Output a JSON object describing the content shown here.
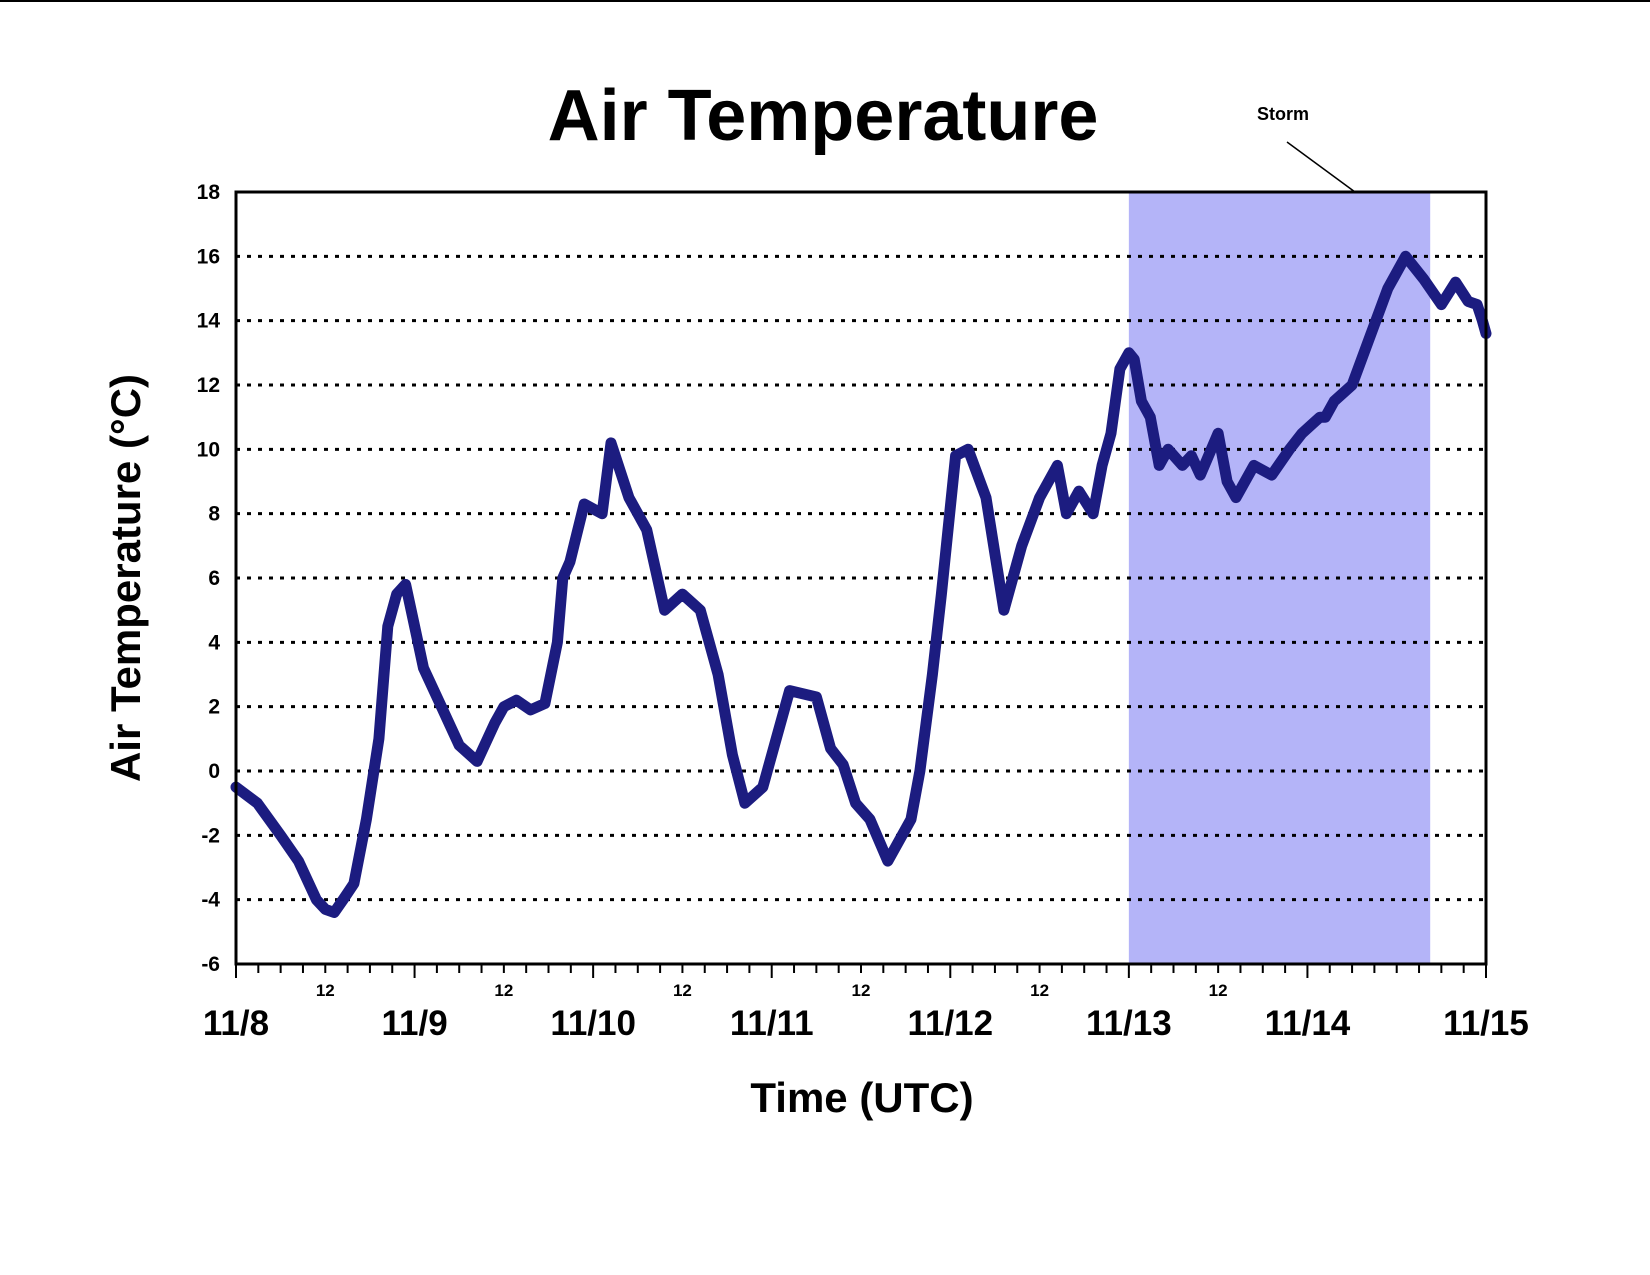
{
  "chart_data": {
    "type": "line",
    "title": "Air Temperature",
    "xlabel": "Time (UTC)",
    "ylabel": "Air Temperature (°C)",
    "ylim": [
      -6,
      18
    ],
    "yticks": [
      "18",
      "16",
      "14",
      "12",
      "10",
      "8",
      "6",
      "4",
      "2",
      "0",
      "-2",
      "-4",
      "-6"
    ],
    "xlim": [
      "11/8 00:00",
      "11/15 00:00"
    ],
    "x_major_labels": [
      "11/8",
      "11/9",
      "11/10",
      "11/11",
      "11/12",
      "11/13",
      "11/14",
      "11/15"
    ],
    "x_minor_label": "12",
    "grid": "horizontal dotted",
    "line_color": "#1c1c80",
    "shade_color": "#b4b4f8",
    "annotation": {
      "text": "Storm",
      "start": "11/13 00:00",
      "end": "11/14 16:30"
    },
    "series": [
      {
        "x_days": [
          0,
          0.12,
          0.25,
          0.35,
          0.45,
          0.5,
          0.55,
          0.6,
          0.66,
          0.73,
          0.8,
          0.85,
          0.9,
          0.95,
          1.0,
          1.05,
          1.15,
          1.25,
          1.35,
          1.45,
          1.5,
          1.57,
          1.65,
          1.73,
          1.8,
          1.83,
          1.87,
          1.95,
          2.05,
          2.1,
          2.2,
          2.3,
          2.4,
          2.5,
          2.6,
          2.7,
          2.78,
          2.85,
          2.95,
          3.1,
          3.25,
          3.33,
          3.4,
          3.47,
          3.55,
          3.65,
          3.73,
          3.78,
          3.83,
          3.9,
          3.95,
          4.03,
          4.1,
          4.2,
          4.3,
          4.4,
          4.5,
          4.6,
          4.65,
          4.72,
          4.8,
          4.85,
          4.9,
          4.95,
          5.0,
          5.03,
          5.07,
          5.12,
          5.17,
          5.22,
          5.3,
          5.35,
          5.4,
          5.5,
          5.55,
          5.6,
          5.7,
          5.8,
          5.9,
          5.97,
          6.03,
          6.07,
          6.1,
          6.15,
          6.25,
          6.35,
          6.45,
          6.55,
          6.65,
          6.75,
          6.83,
          6.9,
          6.95,
          6.98,
          7.0
        ],
        "values": [
          -0.5,
          -1.0,
          -2.0,
          -2.8,
          -4.0,
          -4.3,
          -4.4,
          -4.0,
          -3.5,
          -1.5,
          1.0,
          4.5,
          5.5,
          5.8,
          4.5,
          3.2,
          2.0,
          0.8,
          0.3,
          1.5,
          2.0,
          2.2,
          1.9,
          2.1,
          4.0,
          6.0,
          6.5,
          8.3,
          8.0,
          10.2,
          8.5,
          7.5,
          5.0,
          5.5,
          5.0,
          3.0,
          0.5,
          -1.0,
          -0.5,
          2.5,
          2.3,
          0.7,
          0.2,
          -1.0,
          -1.5,
          -2.8,
          -2.0,
          -1.5,
          0.0,
          3.0,
          5.5,
          9.8,
          10.0,
          8.5,
          5.0,
          7.0,
          8.5,
          9.5,
          8.0,
          8.7,
          8.0,
          9.5,
          10.5,
          12.5,
          13.0,
          12.8,
          11.5,
          11.0,
          9.5,
          10.0,
          9.5,
          9.8,
          9.2,
          10.5,
          9.0,
          8.5,
          9.5,
          9.2,
          10.0,
          10.5,
          10.8,
          11.0,
          11.0,
          11.5,
          12.0,
          13.5,
          15.0,
          16.0,
          15.3,
          14.5,
          15.2,
          14.6,
          14.5,
          14.0,
          13.6
        ]
      }
    ]
  }
}
